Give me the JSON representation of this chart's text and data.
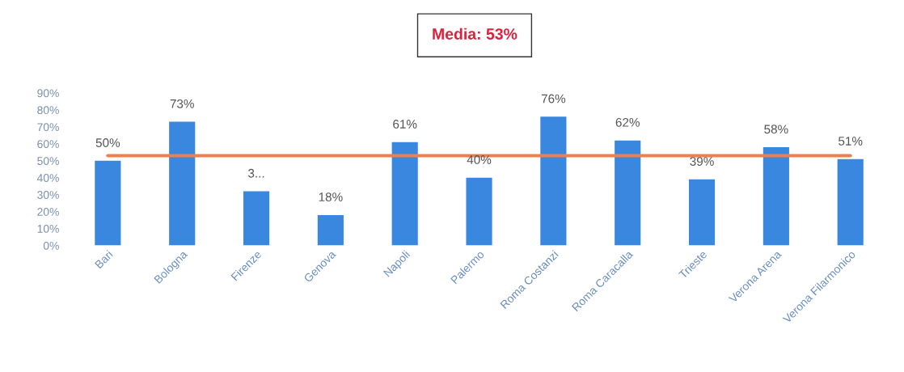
{
  "chart_data": {
    "type": "bar",
    "title": "Media: 53%",
    "categories": [
      "Bari",
      "Bologna",
      "Firenze",
      "Genova",
      "Napoli",
      "Palermo",
      "Roma Costanzi",
      "Roma Caracalla",
      "Trieste",
      "Verona Arena",
      "Verona Filarmonico"
    ],
    "values": [
      50,
      73,
      32,
      18,
      61,
      40,
      76,
      62,
      39,
      58,
      51
    ],
    "value_labels": [
      "50%",
      "73%",
      "3...",
      "18%",
      "61%",
      "40%",
      "76%",
      "62%",
      "39%",
      "58%",
      "51%"
    ],
    "color": "#3a87e0",
    "ylim": [
      0,
      90
    ],
    "yticks": [
      {
        "value": 0,
        "label": "0%"
      },
      {
        "value": 10,
        "label": "10%"
      },
      {
        "value": 20,
        "label": "20%"
      },
      {
        "value": 30,
        "label": "30%"
      },
      {
        "value": 40,
        "label": "40%"
      },
      {
        "value": 50,
        "label": "50%"
      },
      {
        "value": 60,
        "label": "60%"
      },
      {
        "value": 70,
        "label": "70%"
      },
      {
        "value": 80,
        "label": "80%"
      },
      {
        "value": 90,
        "label": "90%"
      }
    ],
    "ref_lines": [
      {
        "axis": "y",
        "value": 53,
        "color": "#f07f4a"
      }
    ],
    "grid": false
  }
}
